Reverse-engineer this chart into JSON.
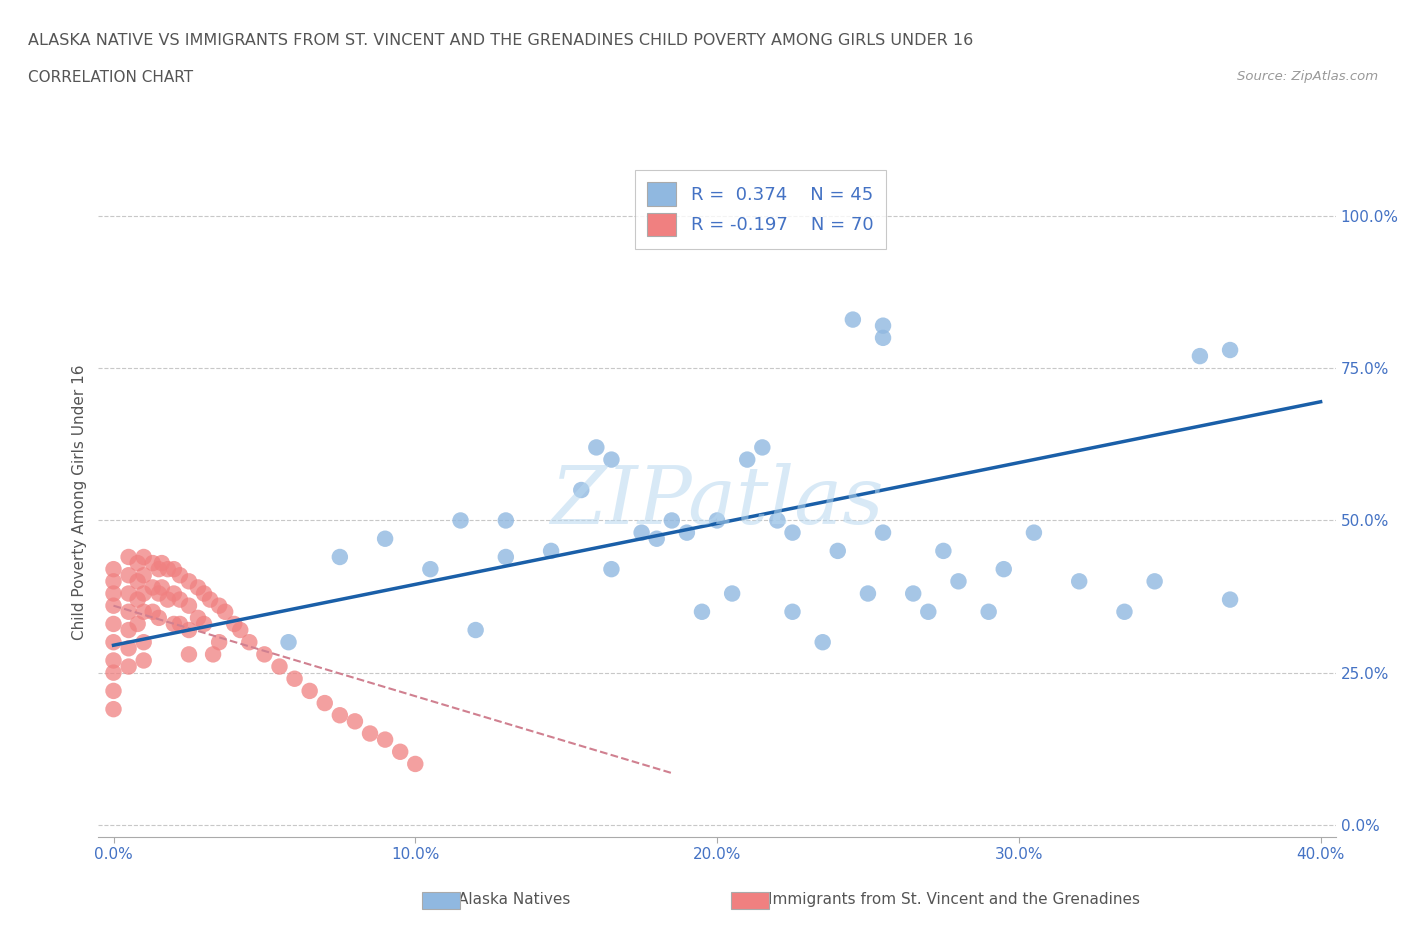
{
  "title": "ALASKA NATIVE VS IMMIGRANTS FROM ST. VINCENT AND THE GRENADINES CHILD POVERTY AMONG GIRLS UNDER 16",
  "subtitle": "CORRELATION CHART",
  "source": "Source: ZipAtlas.com",
  "ylabel": "Child Poverty Among Girls Under 16",
  "watermark": "ZIPatlas",
  "r_alaska": 0.374,
  "n_alaska": 45,
  "r_immigrants": -0.197,
  "n_immigrants": 70,
  "xlim": [
    -0.005,
    0.405
  ],
  "ylim": [
    -0.02,
    1.08
  ],
  "x_ticks": [
    0.0,
    0.1,
    0.2,
    0.3,
    0.4
  ],
  "x_tick_labels": [
    "0.0%",
    "10.0%",
    "20.0%",
    "30.0%",
    "40.0%"
  ],
  "y_tick_labels": [
    "0.0%",
    "25.0%",
    "50.0%",
    "75.0%",
    "100.0%"
  ],
  "y_ticks": [
    0.0,
    0.25,
    0.5,
    0.75,
    1.0
  ],
  "color_alaska": "#90b8e0",
  "color_immigrants": "#f08080",
  "blue_line_color": "#1a5fa8",
  "pink_line_color": "#d08090",
  "grid_color": "#c8c8c8",
  "text_color": "#555555",
  "right_tick_color": "#4472c4",
  "alaska_x": [
    0.058,
    0.075,
    0.09,
    0.105,
    0.115,
    0.12,
    0.13,
    0.13,
    0.145,
    0.155,
    0.16,
    0.165,
    0.165,
    0.175,
    0.18,
    0.185,
    0.19,
    0.195,
    0.2,
    0.205,
    0.21,
    0.215,
    0.22,
    0.225,
    0.225,
    0.235,
    0.24,
    0.25,
    0.255,
    0.265,
    0.27,
    0.275,
    0.28,
    0.29,
    0.295,
    0.305,
    0.255,
    0.255,
    0.32,
    0.335,
    0.345,
    0.37,
    0.37,
    0.36,
    0.245
  ],
  "alaska_y": [
    0.3,
    0.44,
    0.47,
    0.42,
    0.5,
    0.32,
    0.44,
    0.5,
    0.45,
    0.55,
    0.62,
    0.6,
    0.42,
    0.48,
    0.47,
    0.5,
    0.48,
    0.35,
    0.5,
    0.38,
    0.6,
    0.62,
    0.5,
    0.35,
    0.48,
    0.3,
    0.45,
    0.38,
    0.48,
    0.38,
    0.35,
    0.45,
    0.4,
    0.35,
    0.42,
    0.48,
    0.8,
    0.82,
    0.4,
    0.35,
    0.4,
    0.37,
    0.78,
    0.77,
    0.83
  ],
  "immigrants_x": [
    0.0,
    0.0,
    0.0,
    0.0,
    0.0,
    0.0,
    0.0,
    0.0,
    0.0,
    0.0,
    0.005,
    0.005,
    0.005,
    0.005,
    0.005,
    0.005,
    0.005,
    0.008,
    0.008,
    0.008,
    0.008,
    0.01,
    0.01,
    0.01,
    0.01,
    0.01,
    0.01,
    0.013,
    0.013,
    0.013,
    0.015,
    0.015,
    0.015,
    0.016,
    0.016,
    0.018,
    0.018,
    0.02,
    0.02,
    0.02,
    0.022,
    0.022,
    0.022,
    0.025,
    0.025,
    0.025,
    0.025,
    0.028,
    0.028,
    0.03,
    0.03,
    0.032,
    0.033,
    0.035,
    0.035,
    0.037,
    0.04,
    0.042,
    0.045,
    0.05,
    0.055,
    0.06,
    0.065,
    0.07,
    0.075,
    0.08,
    0.085,
    0.09,
    0.095,
    0.1
  ],
  "immigrants_y": [
    0.42,
    0.4,
    0.38,
    0.36,
    0.33,
    0.3,
    0.27,
    0.25,
    0.22,
    0.19,
    0.44,
    0.41,
    0.38,
    0.35,
    0.32,
    0.29,
    0.26,
    0.43,
    0.4,
    0.37,
    0.33,
    0.44,
    0.41,
    0.38,
    0.35,
    0.3,
    0.27,
    0.43,
    0.39,
    0.35,
    0.42,
    0.38,
    0.34,
    0.43,
    0.39,
    0.42,
    0.37,
    0.42,
    0.38,
    0.33,
    0.41,
    0.37,
    0.33,
    0.4,
    0.36,
    0.32,
    0.28,
    0.39,
    0.34,
    0.38,
    0.33,
    0.37,
    0.28,
    0.36,
    0.3,
    0.35,
    0.33,
    0.32,
    0.3,
    0.28,
    0.26,
    0.24,
    0.22,
    0.2,
    0.18,
    0.17,
    0.15,
    0.14,
    0.12,
    0.1
  ],
  "blue_line_x": [
    0.0,
    0.4
  ],
  "blue_line_y": [
    0.295,
    0.695
  ],
  "pink_line_x": [
    0.0,
    0.185
  ],
  "pink_line_y": [
    0.36,
    0.085
  ]
}
